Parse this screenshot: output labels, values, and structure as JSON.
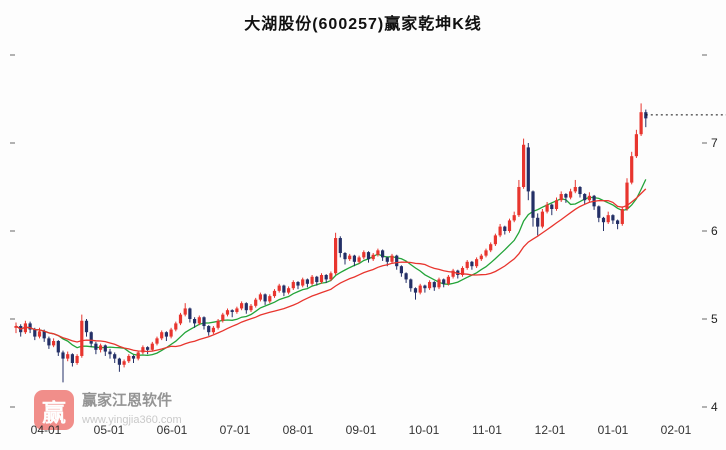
{
  "title": "大湖股份(600257)赢家乾坤K线",
  "watermark": {
    "logo_char": "赢",
    "brand": "赢家江恩软件",
    "url": "www.yingjia360.com"
  },
  "colors": {
    "up": "#e8352e",
    "down": "#232f66",
    "ma_long": "#e8352e",
    "ma_short": "#23a439",
    "dashed_line": "#111111",
    "tick": "#666666",
    "axis_text": "#222222"
  },
  "chart_data": {
    "type": "candlestick",
    "title": "大湖股份(600257)赢家乾坤K线",
    "x_axis": {
      "tick_labels": [
        "04-01",
        "05-01",
        "06-01",
        "07-01",
        "08-01",
        "09-01",
        "10-01",
        "11-01",
        "12-01",
        "01-01",
        "02-01"
      ],
      "month_start_indices": [
        6,
        20,
        33,
        47,
        60,
        73,
        87,
        100,
        114,
        127
      ]
    },
    "y_axis": {
      "tick_labels": [
        "7",
        "6",
        "5",
        "4"
      ],
      "tick_values": [
        7,
        6,
        5,
        4
      ],
      "tick_marks": [
        4,
        5,
        6,
        7,
        8
      ],
      "range": [
        3.85,
        8.3
      ],
      "grid": false
    },
    "legend": "none",
    "overlays": {
      "ma_long_period": 20,
      "ma_short_period": 10,
      "dashed_price_line": 7.32
    },
    "candles_format": "[open, high, low, close]",
    "candles": [
      [
        4.9,
        4.96,
        4.84,
        4.92
      ],
      [
        4.92,
        4.94,
        4.8,
        4.85
      ],
      [
        4.85,
        4.98,
        4.83,
        4.95
      ],
      [
        4.95,
        4.97,
        4.84,
        4.88
      ],
      [
        4.88,
        4.9,
        4.76,
        4.8
      ],
      [
        4.8,
        4.9,
        4.78,
        4.86
      ],
      [
        4.86,
        4.88,
        4.74,
        4.78
      ],
      [
        4.78,
        4.8,
        4.66,
        4.7
      ],
      [
        4.7,
        4.78,
        4.68,
        4.75
      ],
      [
        4.75,
        4.76,
        4.58,
        4.62
      ],
      [
        4.62,
        4.64,
        4.28,
        4.55
      ],
      [
        4.55,
        4.63,
        4.52,
        4.6
      ],
      [
        4.6,
        4.61,
        4.46,
        4.5
      ],
      [
        4.5,
        4.6,
        4.48,
        4.58
      ],
      [
        4.58,
        5.05,
        4.56,
        4.98
      ],
      [
        4.98,
        5.0,
        4.8,
        4.85
      ],
      [
        4.85,
        4.86,
        4.68,
        4.72
      ],
      [
        4.72,
        4.74,
        4.6,
        4.65
      ],
      [
        4.65,
        4.72,
        4.62,
        4.7
      ],
      [
        4.7,
        4.71,
        4.58,
        4.63
      ],
      [
        4.63,
        4.66,
        4.55,
        4.6
      ],
      [
        4.6,
        4.62,
        4.5,
        4.55
      ],
      [
        4.55,
        4.56,
        4.4,
        4.48
      ],
      [
        4.48,
        4.54,
        4.45,
        4.52
      ],
      [
        4.52,
        4.6,
        4.5,
        4.58
      ],
      [
        4.58,
        4.59,
        4.5,
        4.55
      ],
      [
        4.55,
        4.64,
        4.53,
        4.62
      ],
      [
        4.62,
        4.7,
        4.6,
        4.68
      ],
      [
        4.68,
        4.69,
        4.6,
        4.65
      ],
      [
        4.65,
        4.74,
        4.63,
        4.72
      ],
      [
        4.72,
        4.8,
        4.7,
        4.78
      ],
      [
        4.78,
        4.87,
        4.76,
        4.85
      ],
      [
        4.85,
        4.86,
        4.75,
        4.8
      ],
      [
        4.8,
        4.9,
        4.78,
        4.88
      ],
      [
        4.88,
        4.97,
        4.86,
        4.95
      ],
      [
        4.95,
        5.07,
        4.93,
        5.05
      ],
      [
        5.05,
        5.18,
        5.03,
        5.12
      ],
      [
        5.12,
        5.13,
        4.96,
        5.0
      ],
      [
        5.0,
        5.02,
        4.9,
        4.95
      ],
      [
        4.95,
        5.04,
        4.93,
        5.02
      ],
      [
        5.02,
        5.03,
        4.88,
        4.92
      ],
      [
        4.92,
        4.93,
        4.81,
        4.85
      ],
      [
        4.85,
        4.92,
        4.83,
        4.9
      ],
      [
        4.9,
        5.0,
        4.88,
        4.98
      ],
      [
        4.98,
        5.07,
        4.96,
        5.05
      ],
      [
        5.05,
        5.12,
        5.03,
        5.1
      ],
      [
        5.1,
        5.11,
        5.02,
        5.08
      ],
      [
        5.08,
        5.14,
        5.06,
        5.12
      ],
      [
        5.12,
        5.2,
        5.1,
        5.18
      ],
      [
        5.18,
        5.19,
        5.06,
        5.1
      ],
      [
        5.1,
        5.17,
        5.08,
        5.15
      ],
      [
        5.15,
        5.24,
        5.13,
        5.22
      ],
      [
        5.22,
        5.3,
        5.2,
        5.28
      ],
      [
        5.28,
        5.29,
        5.16,
        5.2
      ],
      [
        5.2,
        5.28,
        5.18,
        5.26
      ],
      [
        5.26,
        5.34,
        5.24,
        5.32
      ],
      [
        5.32,
        5.4,
        5.3,
        5.38
      ],
      [
        5.38,
        5.39,
        5.26,
        5.3
      ],
      [
        5.3,
        5.37,
        5.28,
        5.35
      ],
      [
        5.35,
        5.44,
        5.33,
        5.42
      ],
      [
        5.42,
        5.43,
        5.34,
        5.38
      ],
      [
        5.38,
        5.47,
        5.36,
        5.45
      ],
      [
        5.45,
        5.46,
        5.36,
        5.4
      ],
      [
        5.4,
        5.5,
        5.38,
        5.48
      ],
      [
        5.48,
        5.49,
        5.38,
        5.42
      ],
      [
        5.42,
        5.52,
        5.4,
        5.5
      ],
      [
        5.5,
        5.51,
        5.41,
        5.45
      ],
      [
        5.45,
        5.54,
        5.43,
        5.52
      ],
      [
        5.52,
        5.98,
        5.5,
        5.92
      ],
      [
        5.92,
        5.94,
        5.7,
        5.75
      ],
      [
        5.75,
        5.76,
        5.62,
        5.68
      ],
      [
        5.68,
        5.74,
        5.66,
        5.72
      ],
      [
        5.72,
        5.73,
        5.6,
        5.65
      ],
      [
        5.65,
        5.72,
        5.63,
        5.7
      ],
      [
        5.7,
        5.78,
        5.68,
        5.76
      ],
      [
        5.76,
        5.77,
        5.64,
        5.68
      ],
      [
        5.68,
        5.75,
        5.66,
        5.73
      ],
      [
        5.73,
        5.8,
        5.71,
        5.78
      ],
      [
        5.78,
        5.79,
        5.66,
        5.7
      ],
      [
        5.7,
        5.71,
        5.6,
        5.65
      ],
      [
        5.65,
        5.74,
        5.63,
        5.72
      ],
      [
        5.72,
        5.73,
        5.56,
        5.6
      ],
      [
        5.6,
        5.61,
        5.48,
        5.52
      ],
      [
        5.52,
        5.53,
        5.41,
        5.45
      ],
      [
        5.45,
        5.46,
        5.31,
        5.35
      ],
      [
        5.35,
        5.36,
        5.22,
        5.3
      ],
      [
        5.3,
        5.4,
        5.28,
        5.38
      ],
      [
        5.38,
        5.39,
        5.3,
        5.35
      ],
      [
        5.35,
        5.44,
        5.33,
        5.42
      ],
      [
        5.42,
        5.43,
        5.32,
        5.36
      ],
      [
        5.36,
        5.47,
        5.34,
        5.45
      ],
      [
        5.45,
        5.46,
        5.36,
        5.4
      ],
      [
        5.4,
        5.5,
        5.38,
        5.48
      ],
      [
        5.48,
        5.57,
        5.46,
        5.55
      ],
      [
        5.55,
        5.56,
        5.46,
        5.5
      ],
      [
        5.5,
        5.6,
        5.48,
        5.58
      ],
      [
        5.58,
        5.67,
        5.56,
        5.65
      ],
      [
        5.65,
        5.66,
        5.56,
        5.6
      ],
      [
        5.6,
        5.7,
        5.58,
        5.68
      ],
      [
        5.68,
        5.74,
        5.66,
        5.72
      ],
      [
        5.72,
        5.8,
        5.7,
        5.78
      ],
      [
        5.78,
        5.87,
        5.76,
        5.85
      ],
      [
        5.85,
        5.97,
        5.83,
        5.95
      ],
      [
        5.95,
        6.08,
        5.93,
        6.05
      ],
      [
        6.05,
        6.06,
        5.96,
        6.0
      ],
      [
        6.0,
        6.14,
        5.98,
        6.12
      ],
      [
        6.12,
        6.22,
        6.1,
        6.18
      ],
      [
        6.18,
        6.58,
        6.16,
        6.5
      ],
      [
        6.5,
        7.05,
        6.48,
        6.98
      ],
      [
        6.95,
        7.0,
        6.35,
        6.45
      ],
      [
        6.45,
        6.46,
        6.05,
        6.15
      ],
      [
        6.15,
        6.2,
        5.95,
        6.05
      ],
      [
        6.05,
        6.25,
        6.03,
        6.22
      ],
      [
        6.22,
        6.33,
        6.2,
        6.3
      ],
      [
        6.3,
        6.31,
        6.18,
        6.25
      ],
      [
        6.25,
        6.38,
        6.23,
        6.35
      ],
      [
        6.35,
        6.45,
        6.33,
        6.42
      ],
      [
        6.42,
        6.43,
        6.32,
        6.38
      ],
      [
        6.38,
        6.48,
        6.36,
        6.45
      ],
      [
        6.45,
        6.58,
        6.43,
        6.5
      ],
      [
        6.5,
        6.51,
        6.38,
        6.42
      ],
      [
        6.42,
        6.43,
        6.3,
        6.35
      ],
      [
        6.35,
        6.44,
        6.33,
        6.4
      ],
      [
        6.4,
        6.41,
        6.24,
        6.28
      ],
      [
        6.28,
        6.29,
        6.1,
        6.15
      ],
      [
        6.15,
        6.16,
        6.0,
        6.1
      ],
      [
        6.1,
        6.22,
        6.08,
        6.18
      ],
      [
        6.18,
        6.19,
        6.08,
        6.12
      ],
      [
        6.12,
        6.13,
        6.02,
        6.08
      ],
      [
        6.08,
        6.28,
        6.06,
        6.25
      ],
      [
        6.25,
        6.6,
        6.23,
        6.55
      ],
      [
        6.55,
        6.9,
        6.53,
        6.85
      ],
      [
        6.85,
        7.15,
        6.83,
        7.1
      ],
      [
        7.1,
        7.45,
        7.08,
        7.35
      ],
      [
        7.35,
        7.38,
        7.18,
        7.28
      ]
    ]
  }
}
